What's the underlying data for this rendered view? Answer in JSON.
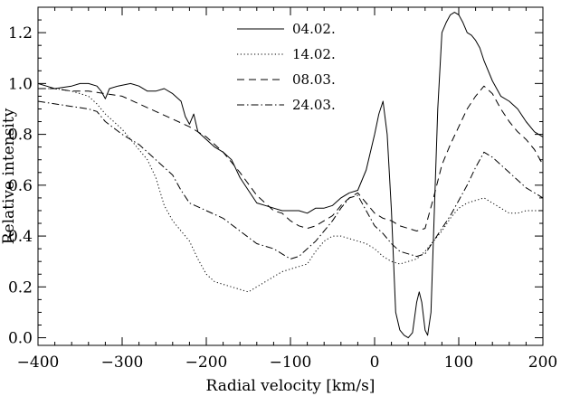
{
  "chart_data": {
    "type": "line",
    "xlabel": "Radial velocity [km/s]",
    "ylabel": "Relative intensity",
    "xlim": [
      -400,
      200
    ],
    "ylim": [
      -0.03,
      1.3
    ],
    "xticks": [
      -400,
      -300,
      -200,
      -100,
      0,
      100,
      200
    ],
    "xtick_labels": [
      "−400",
      "−300",
      "−200",
      "−100",
      "0",
      "100",
      "200"
    ],
    "yticks": [
      0.0,
      0.2,
      0.4,
      0.6,
      0.8,
      1.0,
      1.2
    ],
    "ytick_labels": [
      "0.0",
      "0.2",
      "0.4",
      "0.6",
      "0.8",
      "1.0",
      "1.2"
    ],
    "legend_position": "top-center",
    "grid": false,
    "series": [
      {
        "name": "04.02.",
        "style": "solid",
        "points": [
          [
            -400,
            1.0
          ],
          [
            -390,
            0.99
          ],
          [
            -380,
            0.98
          ],
          [
            -360,
            0.99
          ],
          [
            -350,
            1.0
          ],
          [
            -340,
            1.0
          ],
          [
            -330,
            0.99
          ],
          [
            -325,
            0.97
          ],
          [
            -320,
            0.94
          ],
          [
            -315,
            0.98
          ],
          [
            -305,
            0.99
          ],
          [
            -290,
            1.0
          ],
          [
            -280,
            0.99
          ],
          [
            -270,
            0.97
          ],
          [
            -260,
            0.97
          ],
          [
            -250,
            0.98
          ],
          [
            -240,
            0.96
          ],
          [
            -230,
            0.93
          ],
          [
            -225,
            0.87
          ],
          [
            -220,
            0.84
          ],
          [
            -215,
            0.88
          ],
          [
            -210,
            0.81
          ],
          [
            -200,
            0.78
          ],
          [
            -190,
            0.75
          ],
          [
            -180,
            0.73
          ],
          [
            -170,
            0.7
          ],
          [
            -160,
            0.63
          ],
          [
            -150,
            0.58
          ],
          [
            -140,
            0.53
          ],
          [
            -130,
            0.52
          ],
          [
            -120,
            0.51
          ],
          [
            -110,
            0.5
          ],
          [
            -100,
            0.5
          ],
          [
            -90,
            0.5
          ],
          [
            -80,
            0.49
          ],
          [
            -70,
            0.51
          ],
          [
            -60,
            0.51
          ],
          [
            -50,
            0.52
          ],
          [
            -40,
            0.55
          ],
          [
            -30,
            0.57
          ],
          [
            -20,
            0.58
          ],
          [
            -10,
            0.66
          ],
          [
            0,
            0.8
          ],
          [
            5,
            0.88
          ],
          [
            10,
            0.93
          ],
          [
            15,
            0.8
          ],
          [
            20,
            0.5
          ],
          [
            25,
            0.1
          ],
          [
            30,
            0.03
          ],
          [
            35,
            0.01
          ],
          [
            40,
            0.0
          ],
          [
            45,
            0.02
          ],
          [
            50,
            0.14
          ],
          [
            53,
            0.18
          ],
          [
            56,
            0.14
          ],
          [
            60,
            0.03
          ],
          [
            63,
            0.01
          ],
          [
            67,
            0.1
          ],
          [
            70,
            0.4
          ],
          [
            75,
            0.9
          ],
          [
            80,
            1.2
          ],
          [
            85,
            1.24
          ],
          [
            90,
            1.27
          ],
          [
            95,
            1.28
          ],
          [
            100,
            1.27
          ],
          [
            105,
            1.24
          ],
          [
            110,
            1.2
          ],
          [
            115,
            1.19
          ],
          [
            120,
            1.17
          ],
          [
            125,
            1.14
          ],
          [
            130,
            1.09
          ],
          [
            140,
            1.01
          ],
          [
            150,
            0.95
          ],
          [
            160,
            0.93
          ],
          [
            170,
            0.9
          ],
          [
            180,
            0.85
          ],
          [
            190,
            0.81
          ],
          [
            200,
            0.79
          ]
        ]
      },
      {
        "name": "14.02.",
        "style": "dotted",
        "points": [
          [
            -400,
            0.98
          ],
          [
            -380,
            0.98
          ],
          [
            -360,
            0.97
          ],
          [
            -340,
            0.95
          ],
          [
            -330,
            0.92
          ],
          [
            -320,
            0.88
          ],
          [
            -310,
            0.85
          ],
          [
            -300,
            0.82
          ],
          [
            -290,
            0.78
          ],
          [
            -280,
            0.74
          ],
          [
            -270,
            0.7
          ],
          [
            -260,
            0.63
          ],
          [
            -250,
            0.52
          ],
          [
            -240,
            0.46
          ],
          [
            -230,
            0.42
          ],
          [
            -220,
            0.38
          ],
          [
            -210,
            0.31
          ],
          [
            -200,
            0.25
          ],
          [
            -190,
            0.22
          ],
          [
            -180,
            0.21
          ],
          [
            -170,
            0.2
          ],
          [
            -160,
            0.19
          ],
          [
            -150,
            0.18
          ],
          [
            -140,
            0.2
          ],
          [
            -130,
            0.22
          ],
          [
            -120,
            0.24
          ],
          [
            -110,
            0.26
          ],
          [
            -100,
            0.27
          ],
          [
            -90,
            0.28
          ],
          [
            -80,
            0.29
          ],
          [
            -70,
            0.34
          ],
          [
            -60,
            0.38
          ],
          [
            -50,
            0.4
          ],
          [
            -40,
            0.4
          ],
          [
            -30,
            0.39
          ],
          [
            -20,
            0.38
          ],
          [
            -10,
            0.37
          ],
          [
            0,
            0.35
          ],
          [
            10,
            0.32
          ],
          [
            20,
            0.3
          ],
          [
            30,
            0.29
          ],
          [
            40,
            0.3
          ],
          [
            50,
            0.31
          ],
          [
            60,
            0.34
          ],
          [
            70,
            0.38
          ],
          [
            80,
            0.42
          ],
          [
            90,
            0.47
          ],
          [
            100,
            0.51
          ],
          [
            110,
            0.53
          ],
          [
            120,
            0.54
          ],
          [
            130,
            0.55
          ],
          [
            140,
            0.53
          ],
          [
            150,
            0.51
          ],
          [
            160,
            0.49
          ],
          [
            170,
            0.49
          ],
          [
            180,
            0.5
          ],
          [
            190,
            0.5
          ],
          [
            200,
            0.5
          ]
        ]
      },
      {
        "name": "08.03.",
        "style": "dashed",
        "points": [
          [
            -400,
            0.98
          ],
          [
            -380,
            0.98
          ],
          [
            -360,
            0.97
          ],
          [
            -340,
            0.97
          ],
          [
            -320,
            0.96
          ],
          [
            -300,
            0.95
          ],
          [
            -280,
            0.92
          ],
          [
            -260,
            0.89
          ],
          [
            -240,
            0.86
          ],
          [
            -220,
            0.83
          ],
          [
            -200,
            0.79
          ],
          [
            -180,
            0.73
          ],
          [
            -160,
            0.65
          ],
          [
            -140,
            0.56
          ],
          [
            -120,
            0.5
          ],
          [
            -110,
            0.49
          ],
          [
            -100,
            0.46
          ],
          [
            -90,
            0.44
          ],
          [
            -80,
            0.43
          ],
          [
            -70,
            0.44
          ],
          [
            -60,
            0.46
          ],
          [
            -50,
            0.48
          ],
          [
            -40,
            0.52
          ],
          [
            -30,
            0.55
          ],
          [
            -20,
            0.57
          ],
          [
            -10,
            0.53
          ],
          [
            0,
            0.49
          ],
          [
            10,
            0.47
          ],
          [
            20,
            0.46
          ],
          [
            30,
            0.44
          ],
          [
            40,
            0.43
          ],
          [
            50,
            0.42
          ],
          [
            60,
            0.43
          ],
          [
            70,
            0.55
          ],
          [
            80,
            0.68
          ],
          [
            90,
            0.76
          ],
          [
            100,
            0.83
          ],
          [
            110,
            0.9
          ],
          [
            120,
            0.95
          ],
          [
            130,
            0.99
          ],
          [
            140,
            0.96
          ],
          [
            150,
            0.9
          ],
          [
            160,
            0.85
          ],
          [
            170,
            0.81
          ],
          [
            180,
            0.78
          ],
          [
            190,
            0.74
          ],
          [
            200,
            0.68
          ]
        ]
      },
      {
        "name": "24.03.",
        "style": "dashdot",
        "points": [
          [
            -400,
            0.93
          ],
          [
            -380,
            0.92
          ],
          [
            -360,
            0.91
          ],
          [
            -340,
            0.9
          ],
          [
            -330,
            0.89
          ],
          [
            -320,
            0.85
          ],
          [
            -300,
            0.8
          ],
          [
            -280,
            0.76
          ],
          [
            -260,
            0.7
          ],
          [
            -240,
            0.64
          ],
          [
            -230,
            0.58
          ],
          [
            -220,
            0.53
          ],
          [
            -200,
            0.5
          ],
          [
            -180,
            0.47
          ],
          [
            -160,
            0.42
          ],
          [
            -140,
            0.37
          ],
          [
            -120,
            0.35
          ],
          [
            -110,
            0.33
          ],
          [
            -100,
            0.31
          ],
          [
            -90,
            0.32
          ],
          [
            -80,
            0.35
          ],
          [
            -70,
            0.38
          ],
          [
            -60,
            0.42
          ],
          [
            -50,
            0.46
          ],
          [
            -40,
            0.51
          ],
          [
            -30,
            0.55
          ],
          [
            -20,
            0.56
          ],
          [
            -10,
            0.5
          ],
          [
            0,
            0.44
          ],
          [
            10,
            0.41
          ],
          [
            20,
            0.37
          ],
          [
            30,
            0.34
          ],
          [
            40,
            0.33
          ],
          [
            50,
            0.32
          ],
          [
            60,
            0.33
          ],
          [
            70,
            0.38
          ],
          [
            80,
            0.43
          ],
          [
            90,
            0.48
          ],
          [
            100,
            0.54
          ],
          [
            110,
            0.6
          ],
          [
            120,
            0.67
          ],
          [
            130,
            0.73
          ],
          [
            140,
            0.71
          ],
          [
            150,
            0.68
          ],
          [
            160,
            0.65
          ],
          [
            170,
            0.62
          ],
          [
            180,
            0.59
          ],
          [
            190,
            0.57
          ],
          [
            200,
            0.55
          ]
        ]
      }
    ]
  }
}
